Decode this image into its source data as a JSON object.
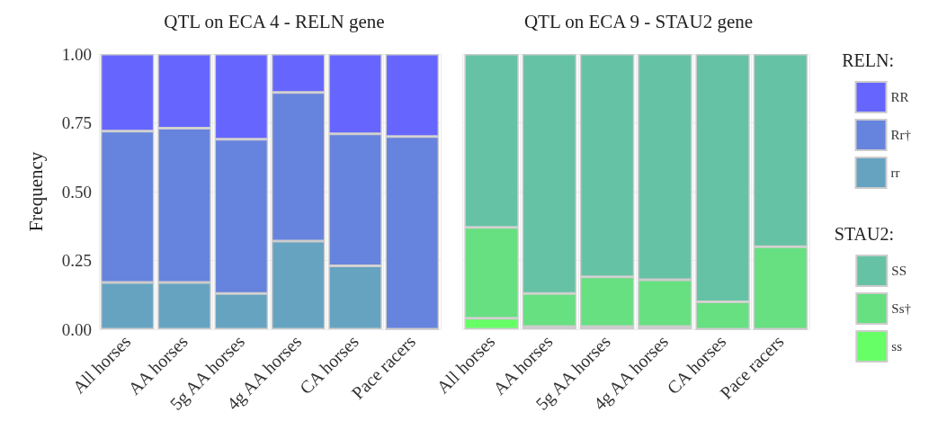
{
  "chart_data": [
    {
      "type": "bar",
      "title": "QTL on ECA 4 - RELN gene",
      "ylabel": "Frequency",
      "legend_title": "RELN:",
      "stacked": true,
      "legend": "right",
      "grid": true,
      "categories": [
        "All horses",
        "AA horses",
        "5g AA horses",
        "4g AA horses",
        "CA horses",
        "Pace racers"
      ],
      "ylim": [
        0,
        1
      ],
      "yticks": [
        {
          "value": 0,
          "label": "0.00"
        },
        {
          "value": 0.25,
          "label": "0.25"
        },
        {
          "value": 0.5,
          "label": "0.50"
        },
        {
          "value": 0.75,
          "label": "0.75"
        },
        {
          "value": 1,
          "label": "1.00"
        }
      ],
      "series": [
        {
          "name": "rr",
          "color": "#66a3c1",
          "values": [
            0.17,
            0.17,
            0.13,
            0.32,
            0.23,
            0
          ]
        },
        {
          "name": "Rr†",
          "color": "#6683dd",
          "values": [
            0.55,
            0.56,
            0.56,
            0.54,
            0.48,
            0.7
          ]
        },
        {
          "name": "RR",
          "color": "#6666ff",
          "values": [
            0.28,
            0.27,
            0.31,
            0.14,
            0.29,
            0.3
          ]
        }
      ]
    },
    {
      "type": "bar",
      "title": "QTL on ECA 9 - STAU2 gene",
      "legend_title": "STAU2:",
      "stacked": true,
      "legend": "right",
      "grid": true,
      "tick_labels": "x",
      "categories": [
        "All horses",
        "AA horses",
        "5g AA horses",
        "4g AA horses",
        "CA horses",
        "Pace racers"
      ],
      "ylim": [
        0,
        1
      ],
      "yticks": [
        0,
        0.25,
        0.5,
        0.75,
        1
      ],
      "series": [
        {
          "name": "ss",
          "color": "#66ff66",
          "values": [
            0.04,
            0.01,
            0.01,
            0.01,
            0,
            0
          ]
        },
        {
          "name": "Ss†",
          "color": "#66e080",
          "values": [
            0.33,
            0.12,
            0.18,
            0.17,
            0.1,
            0.3
          ]
        },
        {
          "name": "SS",
          "color": "#66c2a5",
          "values": [
            0.63,
            0.87,
            0.81,
            0.82,
            0.9,
            0.7
          ]
        }
      ]
    }
  ]
}
